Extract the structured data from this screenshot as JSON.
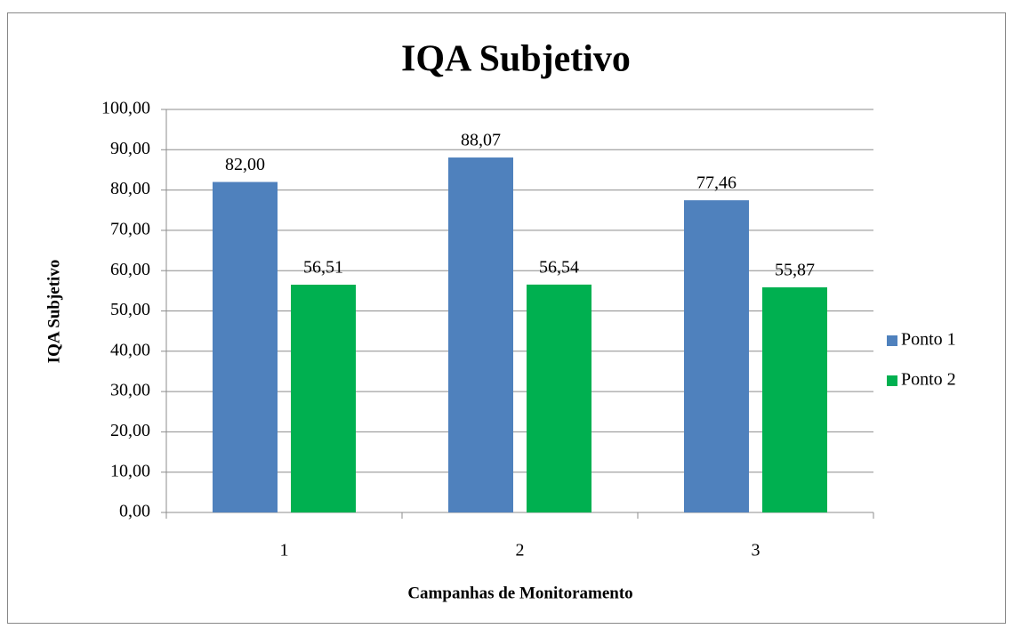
{
  "chart_data": {
    "type": "bar",
    "title": "IQA Subjetivo",
    "y_label": "IQA Subjetivo",
    "x_label": "Campanhas de Monitoramento",
    "categories": [
      "1",
      "2",
      "3"
    ],
    "series": [
      {
        "name": "Ponto 1",
        "color": "#4f81bd",
        "values": [
          82.0,
          88.07,
          77.46
        ],
        "value_labels": [
          "82,00",
          "88,07",
          "77,46"
        ]
      },
      {
        "name": "Ponto 2",
        "color": "#00b050",
        "values": [
          56.51,
          56.54,
          55.87
        ],
        "value_labels": [
          "56,51",
          "56,54",
          "55,87"
        ]
      }
    ],
    "ylim": [
      0,
      100
    ],
    "yticks": [
      {
        "value": 0,
        "label": "0,00"
      },
      {
        "value": 10,
        "label": "10,00"
      },
      {
        "value": 20,
        "label": "20,00"
      },
      {
        "value": 30,
        "label": "30,00"
      },
      {
        "value": 40,
        "label": "40,00"
      },
      {
        "value": 50,
        "label": "50,00"
      },
      {
        "value": 60,
        "label": "60,00"
      },
      {
        "value": 70,
        "label": "70,00"
      },
      {
        "value": 80,
        "label": "80,00"
      },
      {
        "value": 90,
        "label": "90,00"
      },
      {
        "value": 100,
        "label": "100,00"
      }
    ],
    "grid": true,
    "legend": "right"
  }
}
